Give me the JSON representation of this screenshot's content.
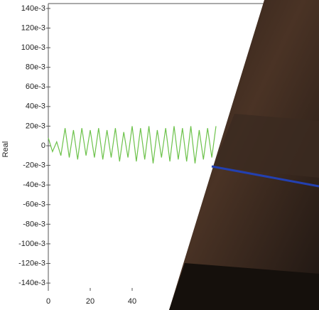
{
  "chart_data": {
    "type": "line",
    "y_label": "Real",
    "x": [
      0,
      2,
      4,
      6,
      8,
      10,
      12,
      14,
      16,
      18,
      20,
      22,
      24,
      26,
      28,
      30,
      32,
      34,
      36,
      38,
      40,
      42,
      44,
      46,
      48,
      50,
      52,
      54,
      56,
      58,
      60,
      62,
      64,
      66,
      68,
      70,
      72,
      74,
      76,
      78,
      80
    ],
    "series": [
      {
        "name": null,
        "color": "#6cc24a",
        "values": [
          0.008,
          -0.006,
          0.004,
          -0.01,
          0.018,
          -0.012,
          0.016,
          -0.014,
          0.018,
          -0.01,
          0.016,
          -0.012,
          0.018,
          -0.014,
          0.016,
          -0.012,
          0.018,
          -0.016,
          0.014,
          -0.012,
          0.02,
          -0.016,
          0.018,
          -0.014,
          0.02,
          -0.018,
          0.016,
          -0.012,
          0.018,
          -0.016,
          0.02,
          -0.014,
          0.018,
          -0.016,
          0.02,
          -0.018,
          0.016,
          -0.014,
          0.018,
          -0.012,
          0.02
        ]
      }
    ],
    "xlim": [
      0,
      128
    ],
    "ylim": [
      -0.145,
      0.145
    ],
    "xticks": [
      0,
      20,
      40
    ],
    "yticks": [
      {
        "value": 0.14,
        "label": "140e-3"
      },
      {
        "value": 0.12,
        "label": "120e-3"
      },
      {
        "value": 0.1,
        "label": "100e-3"
      },
      {
        "value": 0.08,
        "label": "80e-3"
      },
      {
        "value": 0.06,
        "label": "60e-3"
      },
      {
        "value": 0.04,
        "label": "40e-3"
      },
      {
        "value": 0.02,
        "label": "20e-3"
      },
      0,
      {
        "value": -0.02,
        "label": "-20e-3"
      },
      {
        "value": -0.04,
        "label": "-40e-3"
      },
      {
        "value": -0.06,
        "label": "-60e-3"
      },
      {
        "value": -0.08,
        "label": "-80e-3"
      },
      {
        "value": -0.1,
        "label": "-100e-3"
      },
      {
        "value": -0.12,
        "label": "-120e-3"
      },
      {
        "value": -0.14,
        "label": "-140e-3"
      }
    ],
    "grid": false
  }
}
